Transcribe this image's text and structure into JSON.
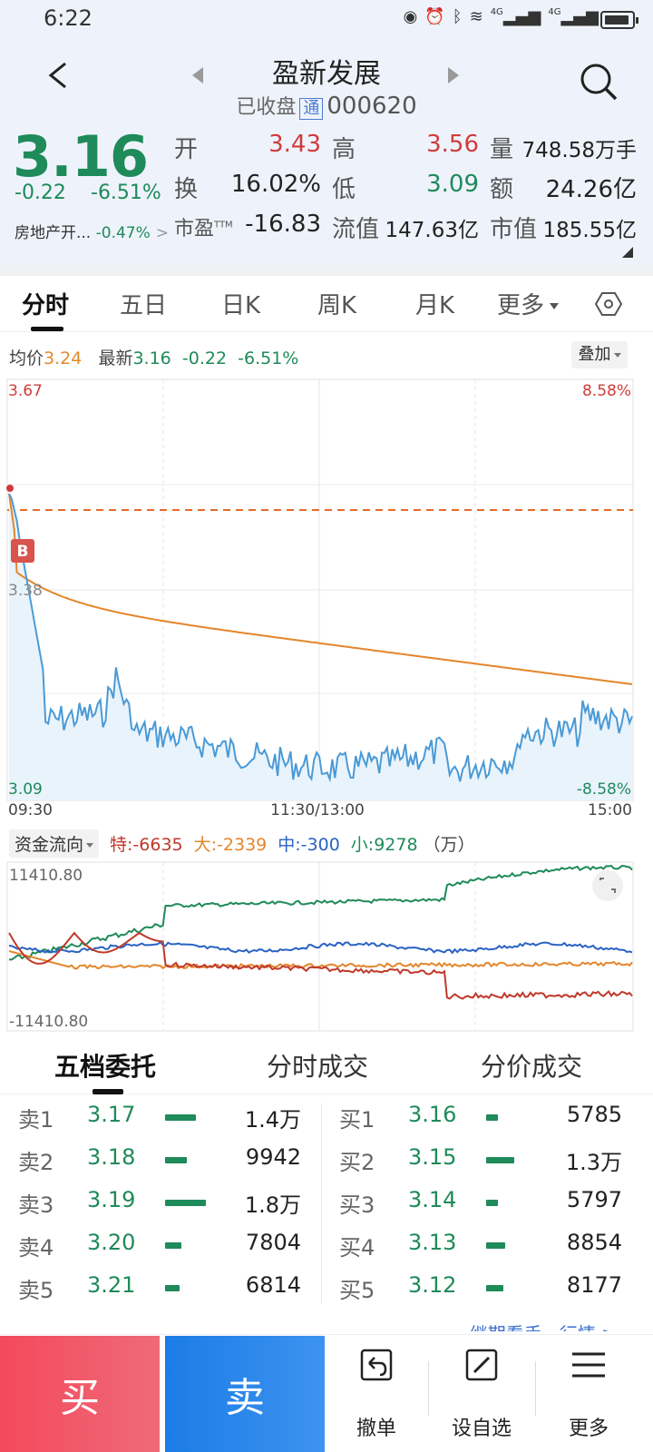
{
  "status_bar": {
    "time": "6:22",
    "network": "4G"
  },
  "header": {
    "title": "盈新发展",
    "status": "已收盘",
    "tong_badge": "通",
    "code": "000620"
  },
  "quote": {
    "price": "3.16",
    "change": "-0.22",
    "change_pct": "-6.51%",
    "sector_name": "房地产开...",
    "sector_change": "-0.47%",
    "open_label": "开",
    "open_value": "3.43",
    "high_label": "高",
    "high_value": "3.56",
    "volume_label": "量",
    "volume_value": "748.58万手",
    "turnover_label": "换",
    "turnover_value": "16.02%",
    "low_label": "低",
    "low_value": "3.09",
    "amount_label": "额",
    "amount_value": "24.26亿",
    "pe_label": "市盈TTM",
    "pe_value": "-16.83",
    "float_cap_label": "流值",
    "float_cap_value": "147.63亿",
    "market_cap_label": "市值",
    "market_cap_value": "185.55亿"
  },
  "tabs": [
    "分时",
    "五日",
    "日K",
    "周K",
    "月K",
    "更多"
  ],
  "chart_info": {
    "avg_label": "均价",
    "avg_value": "3.24",
    "latest_label": "最新",
    "latest_value": "3.16",
    "latest_change": "-0.22",
    "latest_pct": "-6.51%",
    "overlay_label": "叠加"
  },
  "intraday_chart": {
    "y_top": "3.67",
    "y_mid": "3.38",
    "y_bottom": "3.09",
    "pct_top": "8.58%",
    "pct_bottom": "-8.58%",
    "x_start": "09:30",
    "x_mid": "11:30/13:00",
    "x_end": "15:00",
    "marker": "B"
  },
  "fund_flow": {
    "button": "资金流向",
    "special": "特:-6635",
    "large": "大:-2339",
    "medium": "中:-300",
    "small": "小:9278",
    "unit": "（万）",
    "y_top": "11410.80",
    "y_bottom": "-11410.80"
  },
  "orderbook_tabs": [
    "五档委托",
    "分时成交",
    "分价成交"
  ],
  "asks": [
    {
      "label": "卖1",
      "price": "3.17",
      "volume": "1.4万",
      "bar": 0.6
    },
    {
      "label": "卖2",
      "price": "3.18",
      "volume": "9942",
      "bar": 0.42
    },
    {
      "label": "卖3",
      "price": "3.19",
      "volume": "1.8万",
      "bar": 0.8
    },
    {
      "label": "卖4",
      "price": "3.20",
      "volume": "7804",
      "bar": 0.33
    },
    {
      "label": "卖5",
      "price": "3.21",
      "volume": "6814",
      "bar": 0.29
    }
  ],
  "bids": [
    {
      "label": "买1",
      "price": "3.16",
      "volume": "5785",
      "bar": 0.24
    },
    {
      "label": "买2",
      "price": "3.15",
      "volume": "1.3万",
      "bar": 0.55
    },
    {
      "label": "买3",
      "price": "3.14",
      "volume": "5797",
      "bar": 0.24
    },
    {
      "label": "买4",
      "price": "3.13",
      "volume": "8854",
      "bar": 0.37
    },
    {
      "label": "买5",
      "price": "3.12",
      "volume": "8177",
      "bar": 0.34
    }
  ],
  "more_link": "继期看手...行情 >",
  "bottom": {
    "buy": "买",
    "sell": "卖",
    "cancel": "撤单",
    "watch": "设自选",
    "more": "更多"
  }
}
